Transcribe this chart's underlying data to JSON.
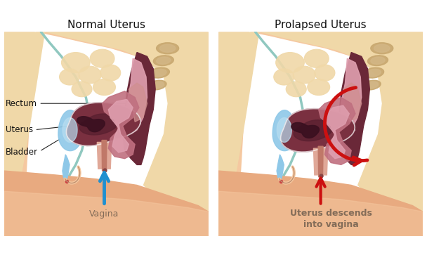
{
  "title_left": "Normal Uterus",
  "title_right": "Prolapsed Uterus",
  "labels_left": [
    "Rectum",
    "Uterus",
    "Bladder"
  ],
  "label_vagina": "Vagina",
  "label_prolapse": "Uterus descends\ninto vagina",
  "bg_color": "#ffffff",
  "skin_light": "#f5c8a0",
  "skin_mid": "#e8aa80",
  "skin_dark": "#d4906a",
  "body_cream": "#f0d8a8",
  "pelvic_cream": "#e8c88a",
  "bladder_blue": "#8ec8e8",
  "bladder_light": "#b8ddf0",
  "teal_line": "#90c8c0",
  "uterus_dark_brown": "#7a3040",
  "uterus_brown": "#8a3845",
  "uterus_pink": "#c07080",
  "uterus_light_pink": "#e0a0b0",
  "rectum_dark": "#6a2838",
  "rectum_mauve": "#b06878",
  "rectum_pink": "#d09090",
  "cervix_pink": "#d89090",
  "vagina_pink": "#e0a898",
  "spine_tan": "#c8a870",
  "arrow_blue": "#2090d0",
  "arrow_red": "#cc1010",
  "title_fontsize": 11,
  "label_fontsize": 8.5,
  "annot_fontsize": 9,
  "bold_label": true
}
